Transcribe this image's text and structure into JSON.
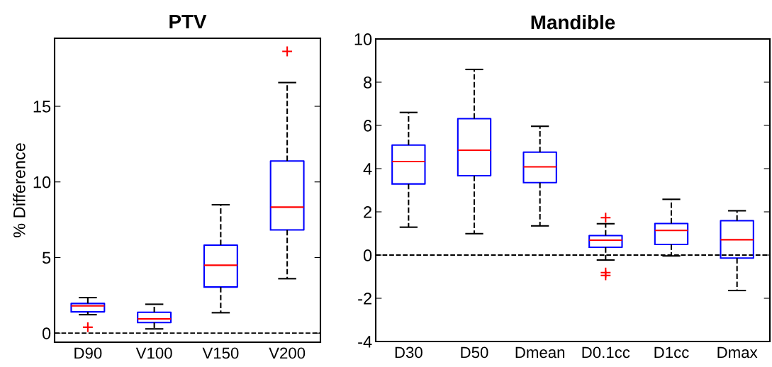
{
  "chart_data": [
    {
      "type": "box",
      "title": "PTV",
      "ylabel": "% Difference",
      "categories": [
        "D90",
        "V100",
        "V150",
        "V200"
      ],
      "ylim": [
        -0.6,
        19.5
      ],
      "yticks": [
        0,
        5,
        10,
        15
      ],
      "grid": false,
      "marker": "cross",
      "series": [
        {
          "color": "#0000ff",
          "boxes": [
            {
              "low": 1.22,
              "q1": 1.41,
              "median": 1.8,
              "q3": 1.96,
              "high": 2.35,
              "outliers": [
                0.39
              ]
            },
            {
              "low": 0.28,
              "q1": 0.7,
              "median": 0.94,
              "q3": 1.38,
              "high": 1.91
            },
            {
              "low": 1.35,
              "q1": 3.05,
              "median": 4.49,
              "q3": 5.82,
              "high": 8.49
            },
            {
              "low": 3.6,
              "q1": 6.83,
              "median": 8.33,
              "q3": 11.38,
              "high": 16.57,
              "outliers": [
                18.63
              ]
            }
          ]
        }
      ],
      "ref_lines": [
        {
          "axis": "y",
          "value": 0,
          "color": "#000000",
          "line_style": "dashed"
        }
      ]
    },
    {
      "type": "box",
      "title": "Mandible",
      "categories": [
        "D30",
        "D50",
        "Dmean",
        "D0.1cc",
        "D1cc",
        "Dmax"
      ],
      "ylim": [
        -4,
        10
      ],
      "yticks": [
        -4,
        -2,
        0,
        2,
        4,
        6,
        8,
        10
      ],
      "grid": false,
      "marker": "cross",
      "series": [
        {
          "color": "#0000ff",
          "boxes": [
            {
              "low": 1.29,
              "q1": 3.29,
              "median": 4.33,
              "q3": 5.09,
              "high": 6.6
            },
            {
              "low": 0.99,
              "q1": 3.67,
              "median": 4.85,
              "q3": 6.31,
              "high": 8.59
            },
            {
              "low": 1.35,
              "q1": 3.35,
              "median": 4.08,
              "q3": 4.76,
              "high": 5.96
            },
            {
              "low": -0.23,
              "q1": 0.36,
              "median": 0.69,
              "q3": 0.9,
              "high": 1.45,
              "outliers": [
                1.73,
                -0.81,
                -0.94
              ]
            },
            {
              "low": -0.04,
              "q1": 0.49,
              "median": 1.14,
              "q3": 1.46,
              "high": 2.58
            },
            {
              "low": -1.64,
              "q1": -0.14,
              "median": 0.71,
              "q3": 1.59,
              "high": 2.05
            }
          ]
        }
      ],
      "ref_lines": [
        {
          "axis": "y",
          "value": 0,
          "color": "#000000",
          "line_style": "dashed"
        }
      ]
    }
  ]
}
